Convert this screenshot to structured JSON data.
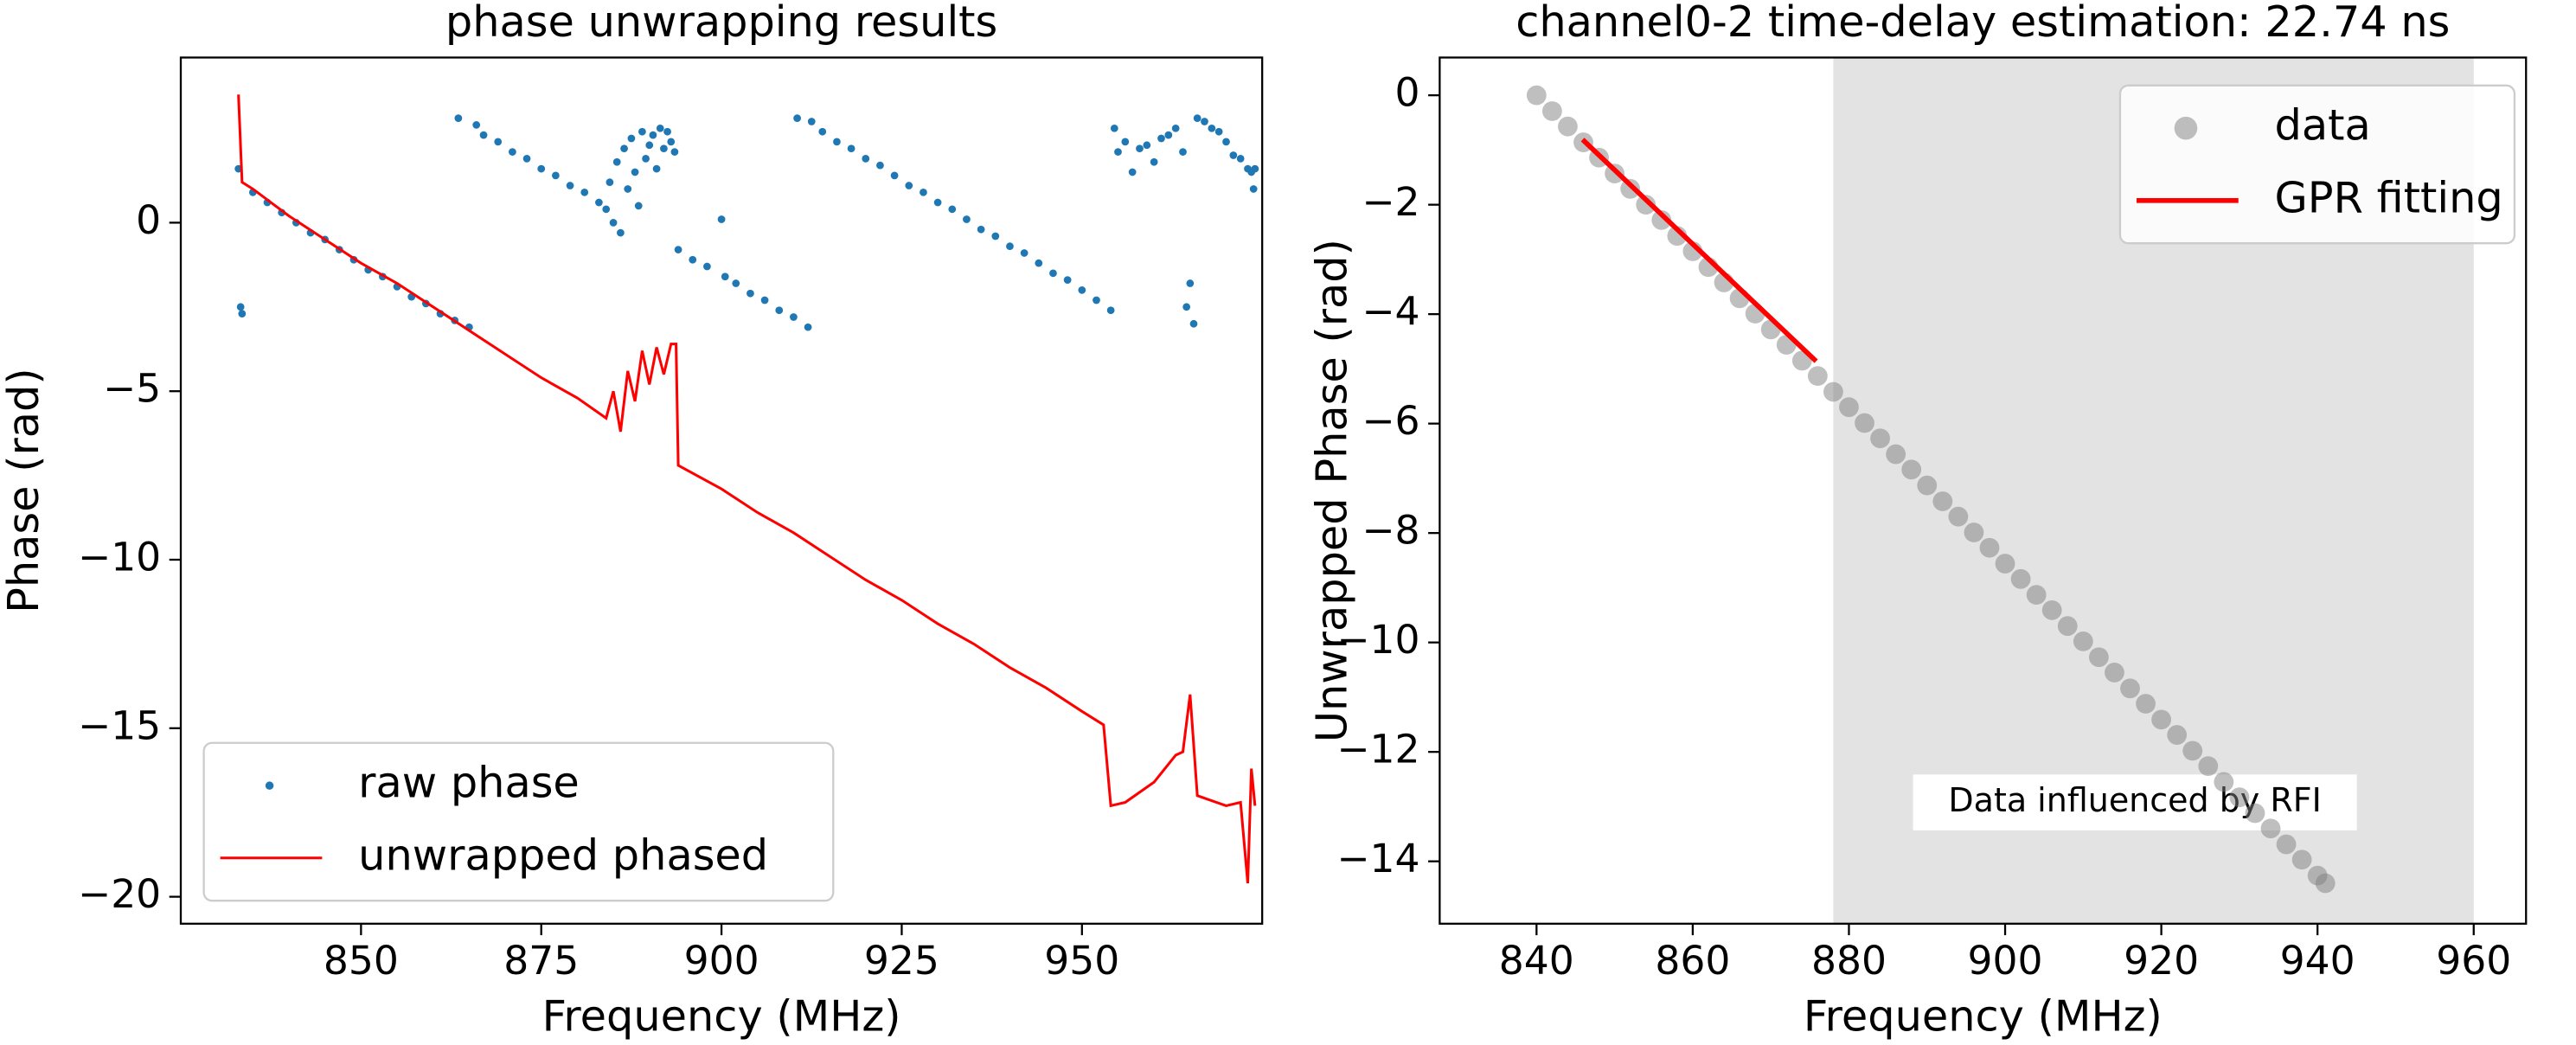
{
  "chart_data": [
    {
      "type": "line",
      "title": "phase unwrapping results",
      "xlabel": "Frequency (MHz)",
      "ylabel": "Phase (rad)",
      "xlim": [
        825,
        975
      ],
      "ylim": [
        -20.8,
        4.9
      ],
      "xticks": [
        850,
        875,
        900,
        925,
        950
      ],
      "yticks": [
        {
          "value": 0,
          "label": "0"
        },
        {
          "value": -5,
          "label": "−5"
        },
        {
          "value": -10,
          "label": "−10"
        },
        {
          "value": -15,
          "label": "−15"
        },
        {
          "value": -20,
          "label": "−20"
        }
      ],
      "legend": "lower left",
      "series": [
        {
          "name": "raw phase",
          "color": "#1f77b4",
          "mode": "markers",
          "x": [
            833,
            833.3,
            833.5,
            835,
            837,
            839,
            841,
            843,
            845,
            847,
            849,
            851,
            853,
            855,
            857,
            859,
            861,
            863,
            865,
            863.5,
            866,
            867,
            869,
            871,
            873,
            875,
            877,
            879,
            881,
            883,
            884,
            884.5,
            885,
            885.5,
            886,
            886.5,
            887,
            887.5,
            888,
            888.5,
            889,
            889.5,
            890,
            890.5,
            891,
            891.5,
            892,
            892.5,
            893,
            893.5,
            900,
            894,
            896,
            898,
            900.5,
            902,
            904,
            906,
            908,
            910,
            912,
            910.5,
            912.5,
            914,
            916,
            918,
            920,
            922,
            924,
            926,
            928,
            930,
            932,
            934,
            936,
            938,
            940,
            942,
            944,
            946,
            948,
            950,
            952,
            954,
            954.5,
            955,
            956,
            957,
            958,
            959,
            960,
            961,
            962,
            963,
            964,
            964.5,
            965,
            965.5,
            966,
            967,
            968,
            969,
            970,
            971,
            972,
            973,
            973.5,
            973.8,
            974
          ],
          "values": [
            1.6,
            -2.5,
            -2.7,
            0.9,
            0.6,
            0.3,
            0.0,
            -0.3,
            -0.5,
            -0.8,
            -1.1,
            -1.4,
            -1.6,
            -1.9,
            -2.2,
            -2.4,
            -2.7,
            -2.9,
            -3.1,
            3.1,
            2.9,
            2.6,
            2.4,
            2.1,
            1.9,
            1.6,
            1.4,
            1.1,
            0.9,
            0.6,
            0.4,
            1.2,
            0.0,
            1.8,
            -0.3,
            2.2,
            1.0,
            2.5,
            1.5,
            0.5,
            2.7,
            1.9,
            2.3,
            2.6,
            1.6,
            2.8,
            2.2,
            2.7,
            2.4,
            2.1,
            0.1,
            -0.8,
            -1.1,
            -1.3,
            -1.6,
            -1.8,
            -2.1,
            -2.3,
            -2.6,
            -2.8,
            -3.1,
            3.1,
            3.0,
            2.7,
            2.4,
            2.2,
            1.9,
            1.7,
            1.4,
            1.1,
            0.9,
            0.6,
            0.4,
            0.1,
            -0.2,
            -0.4,
            -0.7,
            -0.9,
            -1.2,
            -1.5,
            -1.7,
            -2.0,
            -2.3,
            -2.6,
            2.8,
            2.1,
            2.4,
            1.5,
            2.2,
            2.3,
            1.8,
            2.5,
            2.6,
            2.8,
            2.1,
            -2.5,
            -1.8,
            -3.0,
            3.1,
            3.0,
            2.8,
            2.7,
            2.4,
            2.0,
            1.9,
            1.6,
            1.5,
            1.0,
            1.6
          ]
        },
        {
          "name": "unwrapped phased",
          "color": "#ff0000",
          "mode": "line",
          "x": [
            833,
            833.5,
            835,
            840,
            845,
            850,
            855,
            860,
            865,
            870,
            875,
            880,
            884,
            885,
            886,
            887,
            888,
            889,
            890,
            891,
            892,
            893,
            893.7,
            894,
            900,
            905,
            910,
            915,
            920,
            925,
            930,
            935,
            940,
            945,
            950,
            953,
            954,
            956,
            960,
            963,
            964,
            965,
            966,
            970,
            972,
            973,
            973.5,
            974
          ],
          "values": [
            3.8,
            1.2,
            1.0,
            0.2,
            -0.5,
            -1.2,
            -1.8,
            -2.5,
            -3.2,
            -3.9,
            -4.6,
            -5.2,
            -5.8,
            -5.0,
            -6.2,
            -4.4,
            -5.3,
            -3.8,
            -4.8,
            -3.7,
            -4.5,
            -3.6,
            -3.6,
            -7.2,
            -7.9,
            -8.6,
            -9.2,
            -9.9,
            -10.6,
            -11.2,
            -11.9,
            -12.5,
            -13.2,
            -13.8,
            -14.5,
            -14.9,
            -17.3,
            -17.2,
            -16.6,
            -15.8,
            -15.7,
            -14.0,
            -17.0,
            -17.3,
            -17.2,
            -19.6,
            -16.2,
            -17.3
          ]
        }
      ]
    },
    {
      "type": "scatter",
      "title": "channel0-2 time-delay estimation: 22.74 ns",
      "xlabel": "Frequency (MHz)",
      "ylabel": "Unwrapped Phase (rad)",
      "xlim": [
        827.6,
        966.7
      ],
      "ylim": [
        -15.14,
        0.69
      ],
      "xticks": [
        840,
        860,
        880,
        900,
        920,
        940,
        960
      ],
      "yticks": [
        {
          "value": 0,
          "label": "0"
        },
        {
          "value": -2,
          "label": "−2"
        },
        {
          "value": -4,
          "label": "−4"
        },
        {
          "value": -6,
          "label": "−6"
        },
        {
          "value": -8,
          "label": "−8"
        },
        {
          "value": -10,
          "label": "−10"
        },
        {
          "value": -12,
          "label": "−12"
        },
        {
          "value": -14,
          "label": "−14"
        }
      ],
      "legend": "upper right",
      "span": {
        "x": [
          878,
          960
        ],
        "color": "#e3e3e3"
      },
      "annotation": "Data influenced by RFI",
      "series": [
        {
          "name": "data",
          "color": "#808080",
          "mode": "markers",
          "x": [
            840,
            842,
            844,
            846,
            848,
            850,
            852,
            854,
            856,
            858,
            860,
            862,
            864,
            866,
            868,
            870,
            872,
            874,
            876,
            878,
            880,
            882,
            884,
            886,
            888,
            890,
            892,
            894,
            896,
            898,
            900,
            902,
            904,
            906,
            908,
            910,
            912,
            914,
            916,
            918,
            920,
            922,
            924,
            926,
            928,
            930,
            932,
            934,
            936,
            938,
            940,
            941
          ],
          "values": [
            0,
            -0.29,
            -0.57,
            -0.86,
            -1.14,
            -1.43,
            -1.71,
            -2.0,
            -2.28,
            -2.57,
            -2.85,
            -3.14,
            -3.42,
            -3.71,
            -3.99,
            -4.28,
            -4.56,
            -4.85,
            -5.13,
            -5.42,
            -5.7,
            -5.99,
            -6.27,
            -6.56,
            -6.84,
            -7.13,
            -7.42,
            -7.7,
            -7.99,
            -8.27,
            -8.56,
            -8.84,
            -9.13,
            -9.41,
            -9.7,
            -9.98,
            -10.27,
            -10.55,
            -10.84,
            -11.12,
            -11.41,
            -11.69,
            -11.98,
            -12.26,
            -12.55,
            -12.83,
            -13.12,
            -13.4,
            -13.69,
            -13.97,
            -14.26,
            -14.4
          ]
        },
        {
          "name": "GPR fitting",
          "color": "#ff0000",
          "mode": "line",
          "x": [
            845.9,
            875.8
          ],
          "values": [
            -0.81,
            -4.86
          ]
        }
      ]
    }
  ]
}
